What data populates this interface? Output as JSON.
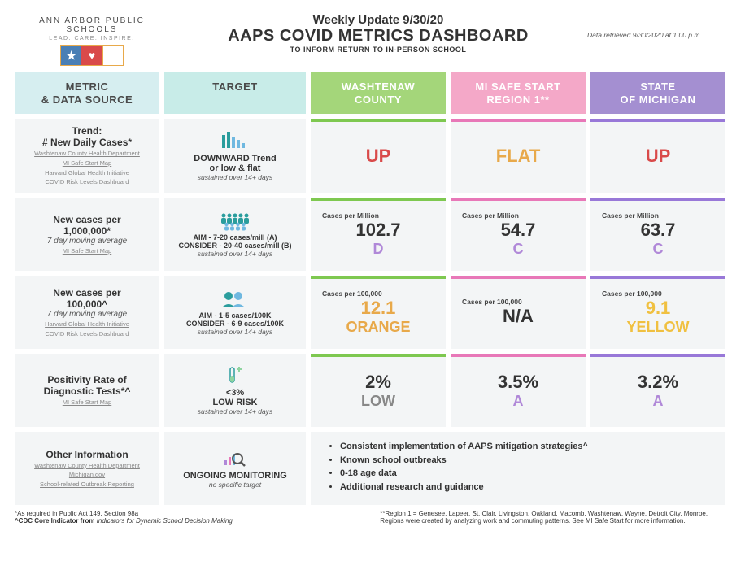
{
  "logo": {
    "line1": "ANN ARBOR PUBLIC SCHOOLS",
    "line2": "LEAD. CARE. INSPIRE."
  },
  "header": {
    "line1": "Weekly Update 9/30/20",
    "line2": "AAPS COVID METRICS DASHBOARD",
    "line3": "TO INFORM RETURN TO IN-PERSON SCHOOL",
    "retrieved": "Data retrieved 9/30/2020 at 1:00 p.m.."
  },
  "colhdr": {
    "metric": "METRIC & DATA SOURCE",
    "target": "TARGET",
    "wash": "WASHTENAW COUNTY",
    "region": "MI SAFE START REGION 1**",
    "mich": "STATE OF MICHIGAN"
  },
  "rows": [
    {
      "metric": {
        "title": "Trend:",
        "sub": "# New Daily Cases*",
        "sources": [
          "Washtenaw County Health Department",
          "MI Safe Start Map",
          "Harvard Global Health Initiative",
          "COVID Risk Levels Dashboard"
        ]
      },
      "target": {
        "big": "DOWNWARD Trend",
        "l2": "or low & flat",
        "note": "sustained over 14+ days",
        "icon": "bar-chart"
      },
      "wash": {
        "value": "UP",
        "value_color": "#d94a4a"
      },
      "region": {
        "value": "FLAT",
        "value_color": "#e8a94a"
      },
      "mich": {
        "value": "UP",
        "value_color": "#d94a4a"
      }
    },
    {
      "metric": {
        "title": "New cases per 1,000,000*",
        "sub": "7 day moving average",
        "sources": [
          "MI Safe Start Map"
        ]
      },
      "target": {
        "l1": "AIM - 7-20 cases/mill (A)",
        "l2": "CONSIDER - 20-40 cases/mill (B)",
        "note": "sustained over 14+ days",
        "icon": "people"
      },
      "label": "Cases per Million",
      "wash": {
        "value": "102.7",
        "grade": "D",
        "value_color": "#333",
        "grade_color": "#b088d8"
      },
      "region": {
        "value": "54.7",
        "grade": "C",
        "value_color": "#333",
        "grade_color": "#b088d8"
      },
      "mich": {
        "value": "63.7",
        "grade": "C",
        "value_color": "#333",
        "grade_color": "#b088d8"
      }
    },
    {
      "metric": {
        "title": "New cases per 100,000^",
        "sub": "7 day moving average",
        "sources": [
          "Harvard Global Health Initiative",
          "COVID Risk Levels Dashboard"
        ]
      },
      "target": {
        "l1": "AIM - 1-5 cases/100K",
        "l2": "CONSIDER - 6-9 cases/100K",
        "note": "sustained over 14+ days",
        "icon": "group"
      },
      "label": "Cases per 100,000",
      "wash": {
        "value": "12.1",
        "grade": "ORANGE",
        "value_color": "#e8a94a",
        "grade_color": "#e8a94a"
      },
      "region": {
        "value": "N/A",
        "grade": "",
        "value_color": "#333"
      },
      "mich": {
        "value": "9.1",
        "grade": "YELLOW",
        "value_color": "#f0c040",
        "grade_color": "#f0c040"
      }
    },
    {
      "metric": {
        "title": "Positivity Rate of Diagnostic Tests*^",
        "sub": "",
        "sources": [
          "MI Safe Start Map"
        ]
      },
      "target": {
        "big": "<3%",
        "l2": "LOW RISK",
        "note": "sustained over 14+ days",
        "icon": "test-tube"
      },
      "wash": {
        "value": "2%",
        "grade": "LOW",
        "value_color": "#333",
        "grade_color": "#888"
      },
      "region": {
        "value": "3.5%",
        "grade": "A",
        "value_color": "#333",
        "grade_color": "#b088d8"
      },
      "mich": {
        "value": "3.2%",
        "grade": "A",
        "value_color": "#333",
        "grade_color": "#b088d8"
      }
    },
    {
      "metric": {
        "title": "Other Information",
        "sub": "",
        "sources": [
          "Washtenaw County Health Department",
          "Michigan.gov",
          "School-related Outbreak Reporting"
        ]
      },
      "target": {
        "big": "ONGOING MONITORING",
        "note": "no specific target",
        "icon": "magnify"
      },
      "bullets": [
        "Consistent implementation of AAPS mitigation strategies^",
        "Known school outbreaks",
        "0-18 age data",
        "Additional research and guidance"
      ]
    }
  ],
  "footnotes": {
    "left1": "*As required in Public Act 149, Section 98a",
    "left2": "^CDC Core Indicator from Indicators for Dynamic School Decision Making",
    "right": "**Region 1 = Genesee, Lapeer, St. Clair, Livingston, Oakland, Macomb, Washtenaw, Wayne, Detroit City, Monroe. Regions were created by analyzing work and commuting patterns. See MI Safe Start for more information."
  },
  "colors": {
    "wash_bar": "#7ec850",
    "region_bar": "#e878b8",
    "mich_bar": "#9878d8"
  }
}
